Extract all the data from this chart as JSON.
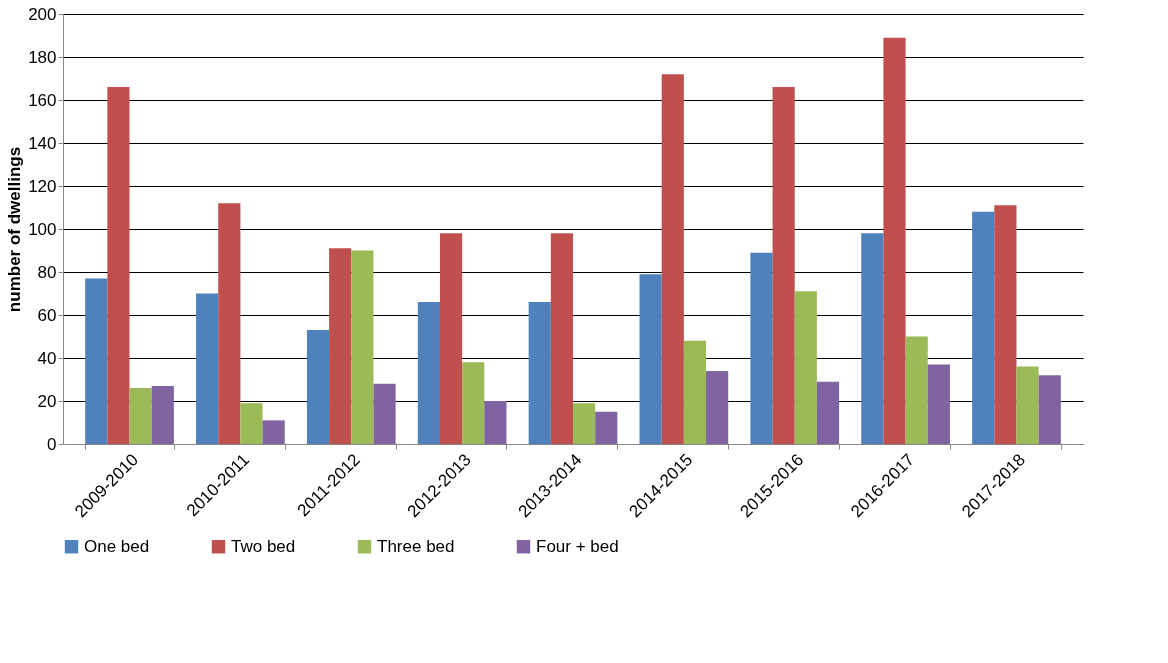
{
  "chart_data": {
    "type": "bar",
    "ylabel": "number of dwellings",
    "categories": [
      "2009-2010",
      "2010-2011",
      "2011-2012",
      "2012-2013",
      "2013-2014",
      "2014-2015",
      "2015-2016",
      "2016-2017",
      "2017-2018"
    ],
    "series": [
      {
        "name": "One bed",
        "color": "#4f81bd",
        "values": [
          77,
          70,
          53,
          66,
          66,
          79,
          89,
          98,
          108
        ]
      },
      {
        "name": "Two bed",
        "color": "#c0504d",
        "values": [
          166,
          112,
          91,
          98,
          98,
          172,
          166,
          189,
          111
        ]
      },
      {
        "name": "Three bed",
        "color": "#9bbb59",
        "values": [
          26,
          19,
          90,
          38,
          19,
          48,
          71,
          50,
          36
        ]
      },
      {
        "name": "Four + bed",
        "color": "#8064a2",
        "values": [
          27,
          11,
          28,
          20,
          15,
          34,
          29,
          37,
          32
        ]
      }
    ],
    "ylim": [
      0,
      200
    ],
    "yticks": [
      0,
      20,
      40,
      60,
      80,
      100,
      120,
      140,
      160,
      180,
      200
    ],
    "grid": "y",
    "legend": "bottom"
  }
}
